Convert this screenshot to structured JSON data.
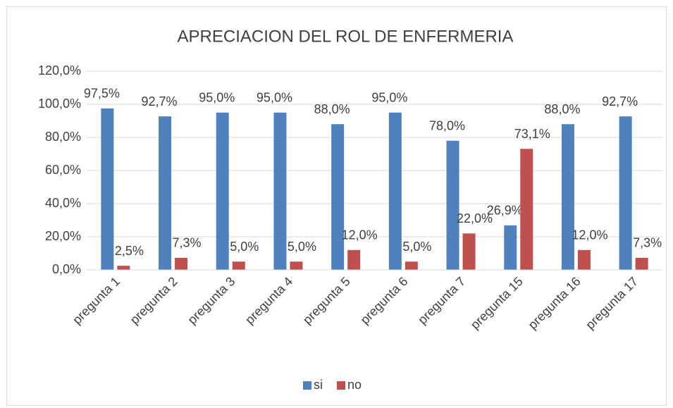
{
  "chart_data": {
    "type": "bar",
    "title": "APRECIACION DEL ROL DE ENFERMERIA",
    "categories": [
      "pregunta 1",
      "pregunta 2",
      "pregunta 3",
      "pregunta 4",
      "pregunta 5",
      "pregunta 6",
      "pregunta 7",
      "pregunta 15",
      "pregunta 16",
      "pregunta 17"
    ],
    "series": [
      {
        "name": "si",
        "color": "#4f81bd",
        "values": [
          97.5,
          92.7,
          95.0,
          95.0,
          88.0,
          95.0,
          78.0,
          26.9,
          88.0,
          92.7
        ],
        "value_labels": [
          "97,5%",
          "92,7%",
          "95,0%",
          "95,0%",
          "88,0%",
          "95,0%",
          "78,0%",
          "26,9%",
          "88,0%",
          "92,7%"
        ]
      },
      {
        "name": "no",
        "color": "#c0504d",
        "values": [
          2.5,
          7.3,
          5.0,
          5.0,
          12.0,
          5.0,
          22.0,
          73.1,
          12.0,
          7.3
        ],
        "value_labels": [
          "2,5%",
          "7,3%",
          "5,0%",
          "5,0%",
          "12,0%",
          "5,0%",
          "22,0%",
          "73,1%",
          "12,0%",
          "7,3%"
        ]
      }
    ],
    "ylim": [
      0,
      120
    ],
    "yticks": [
      {
        "value": 0,
        "label": "0,0%"
      },
      {
        "value": 20,
        "label": "20,0%"
      },
      {
        "value": 40,
        "label": "40,0%"
      },
      {
        "value": 60,
        "label": "60,0%"
      },
      {
        "value": 80,
        "label": "80,0%"
      },
      {
        "value": 100,
        "label": "100,0%"
      },
      {
        "value": 120,
        "label": "120,0%"
      }
    ],
    "grid": true,
    "legend": "bottom"
  }
}
